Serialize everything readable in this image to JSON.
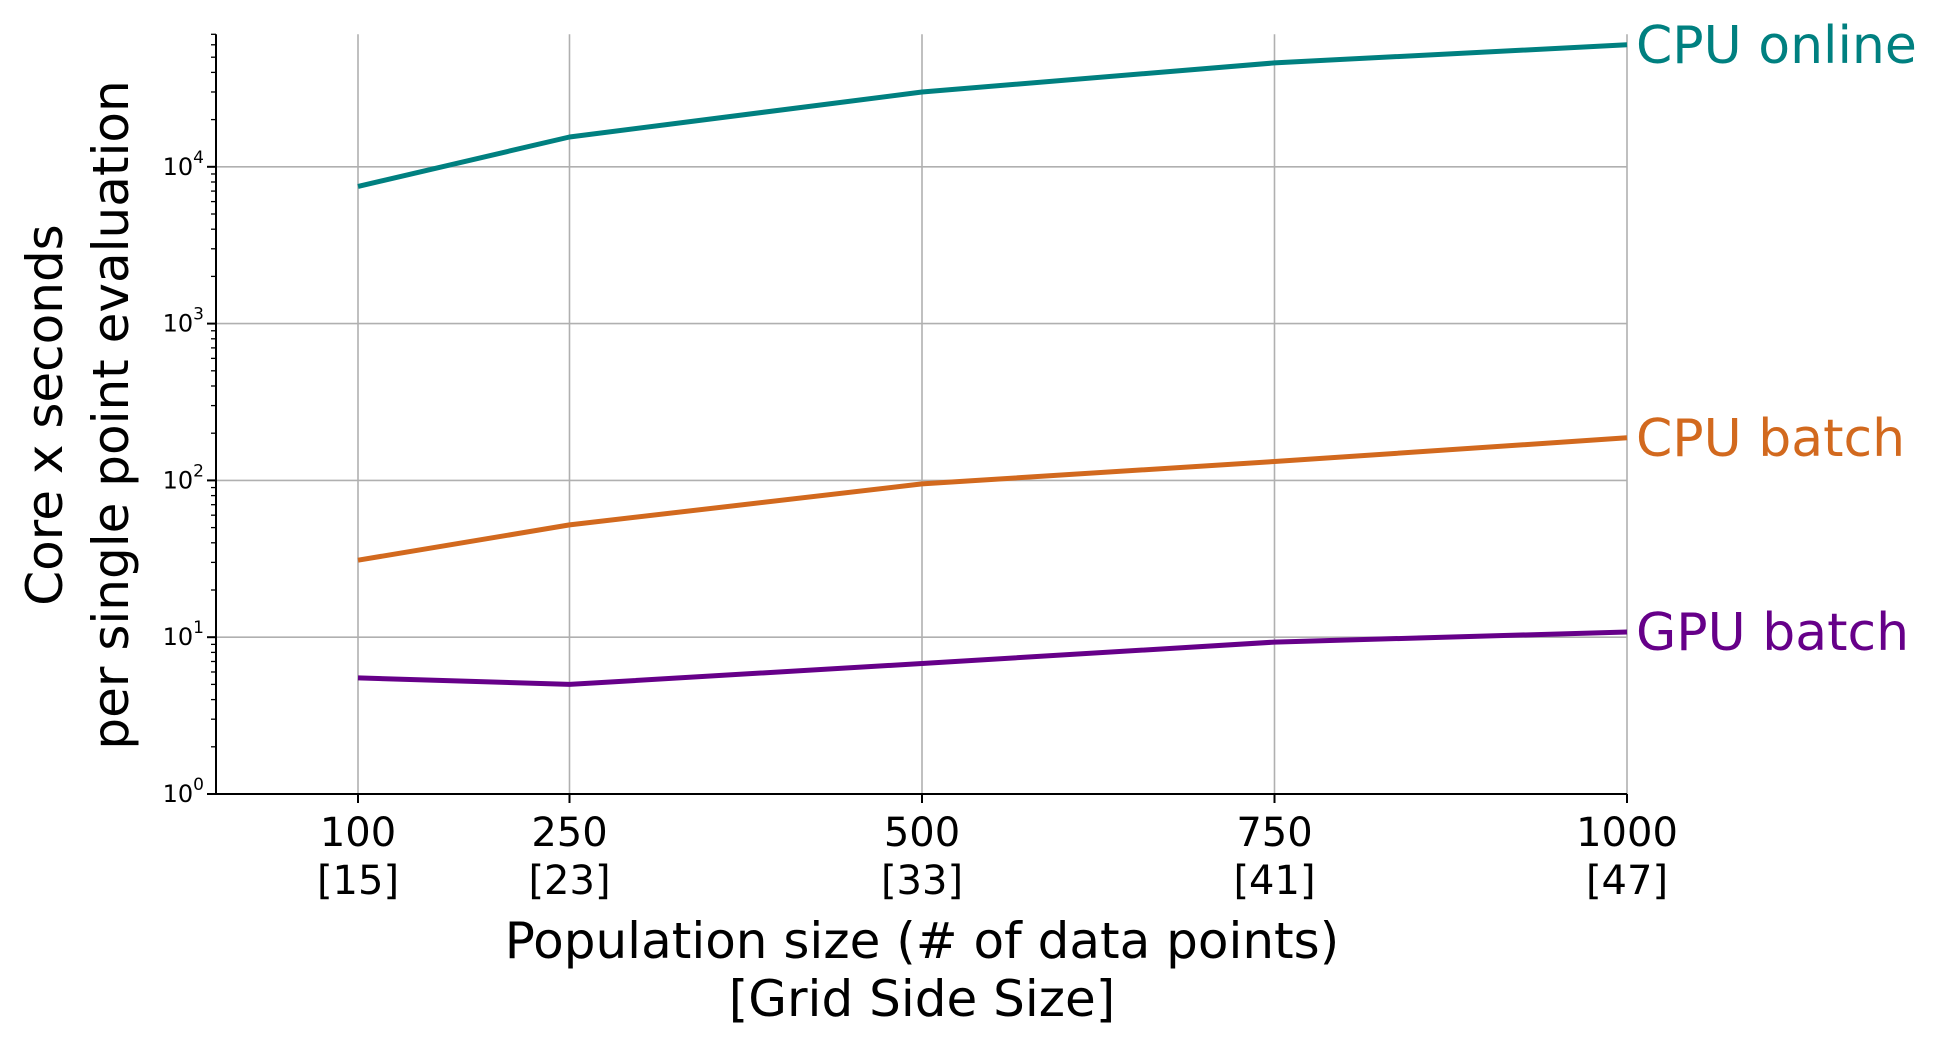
{
  "chart_data": {
    "type": "line",
    "x": [
      100,
      250,
      500,
      750,
      1000
    ],
    "x_tick_labels": [
      {
        "value": 100,
        "label": "100",
        "sublabel": "[15]"
      },
      {
        "value": 250,
        "label": "250",
        "sublabel": "[23]"
      },
      {
        "value": 500,
        "label": "500",
        "sublabel": "[33]"
      },
      {
        "value": 750,
        "label": "750",
        "sublabel": "[41]"
      },
      {
        "value": 1000,
        "label": "1000",
        "sublabel": "[47]"
      }
    ],
    "xlabel": [
      "Population size (# of data points)",
      "[Grid Side Size]"
    ],
    "ylabel": [
      "Core x seconds",
      "per single point evaluation"
    ],
    "yscale": "log",
    "ylim": [
      1,
      70000
    ],
    "xlim": [
      0,
      1000
    ],
    "y_ticks": [
      {
        "value": 1,
        "base": "10",
        "exp": "0"
      },
      {
        "value": 10,
        "base": "10",
        "exp": "1"
      },
      {
        "value": 100,
        "base": "10",
        "exp": "2"
      },
      {
        "value": 1000,
        "base": "10",
        "exp": "3"
      },
      {
        "value": 10000,
        "base": "10",
        "exp": "4"
      }
    ],
    "grid": true,
    "series": [
      {
        "name": "CPU online",
        "color": "#008080",
        "values": [
          7500,
          15500,
          30000,
          46000,
          60000
        ]
      },
      {
        "name": "CPU batch",
        "color": "#d2691e",
        "values": [
          31,
          52,
          95,
          132,
          187
        ]
      },
      {
        "name": "GPU batch",
        "color": "#660089",
        "values": [
          5.5,
          5.0,
          6.8,
          9.3,
          10.8
        ]
      }
    ]
  }
}
